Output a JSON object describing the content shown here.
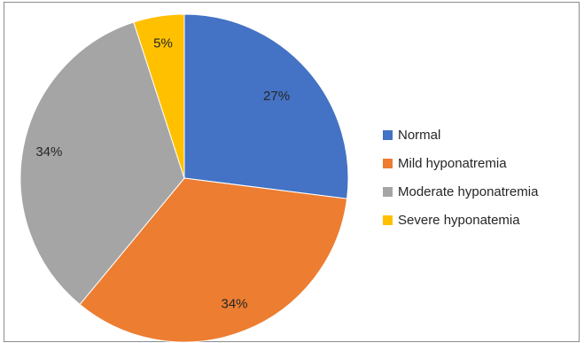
{
  "chart_data": {
    "type": "pie",
    "title": "",
    "slices": [
      {
        "name": "Normal",
        "value": 27,
        "label": "27%",
        "color": "#4472C4"
      },
      {
        "name": "Mild hyponatremia",
        "value": 34,
        "label": "34%",
        "color": "#ED7D31"
      },
      {
        "name": "Moderate hyponatremia",
        "value": 34,
        "label": "34%",
        "color": "#A5A5A5"
      },
      {
        "name": "Severe hyponatemia",
        "value": 5,
        "label": "5%",
        "color": "#FFC000"
      }
    ],
    "start_angle_deg": 0,
    "direction": "clockwise",
    "legend_position": "right"
  }
}
